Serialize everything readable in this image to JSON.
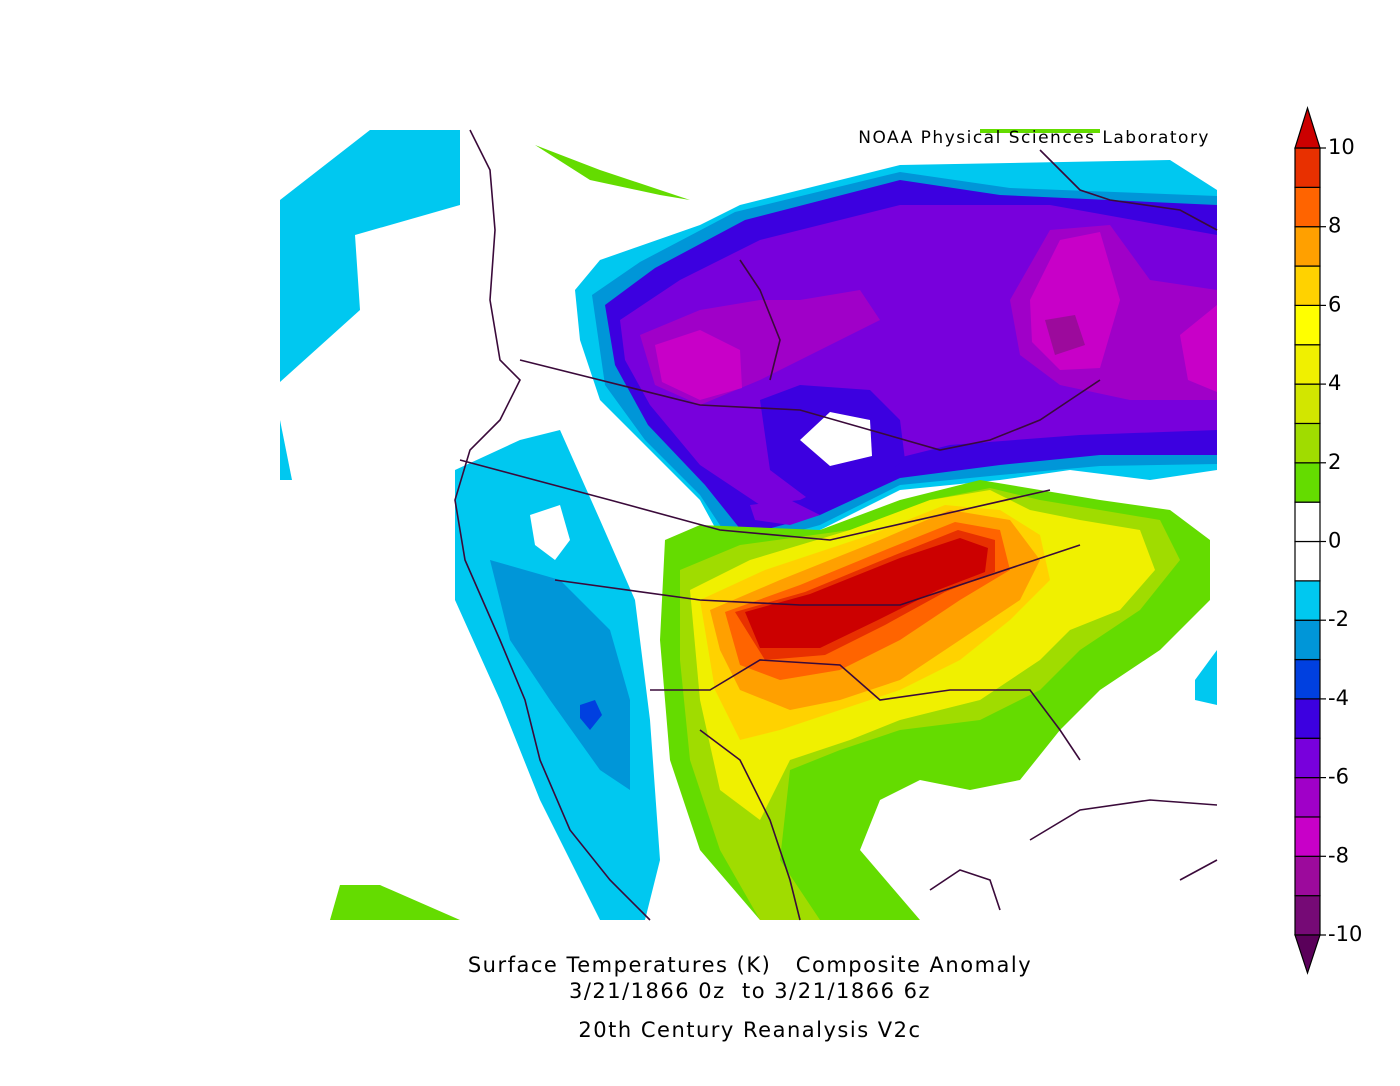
{
  "credit": "NOAA Physical Sciences Laboratory",
  "caption": {
    "line1": "Surface Temperatures (K)   Composite Anomaly",
    "line2": "3/21/1866 0z  to 3/21/1866 6z",
    "line3": "20th Century Reanalysis V2c"
  },
  "colorbar": {
    "limits": [
      -10,
      10
    ],
    "ticks": [
      10,
      8,
      6,
      4,
      2,
      0,
      -2,
      -4,
      -6,
      -8,
      -10
    ],
    "colors": [
      "#760a76",
      "#9c0a9c",
      "#c800c8",
      "#a000c8",
      "#7800dc",
      "#3c00e0",
      "#0040e0",
      "#0096d8",
      "#00c8f0",
      "#ffffff",
      "#ffffff",
      "#64dc00",
      "#a0dc00",
      "#d2e600",
      "#f0f000",
      "#ffff00",
      "#ffd200",
      "#ffa000",
      "#ff6400",
      "#e83000"
    ],
    "under_color": "#5a005a",
    "over_color": "#cc0000"
  }
}
